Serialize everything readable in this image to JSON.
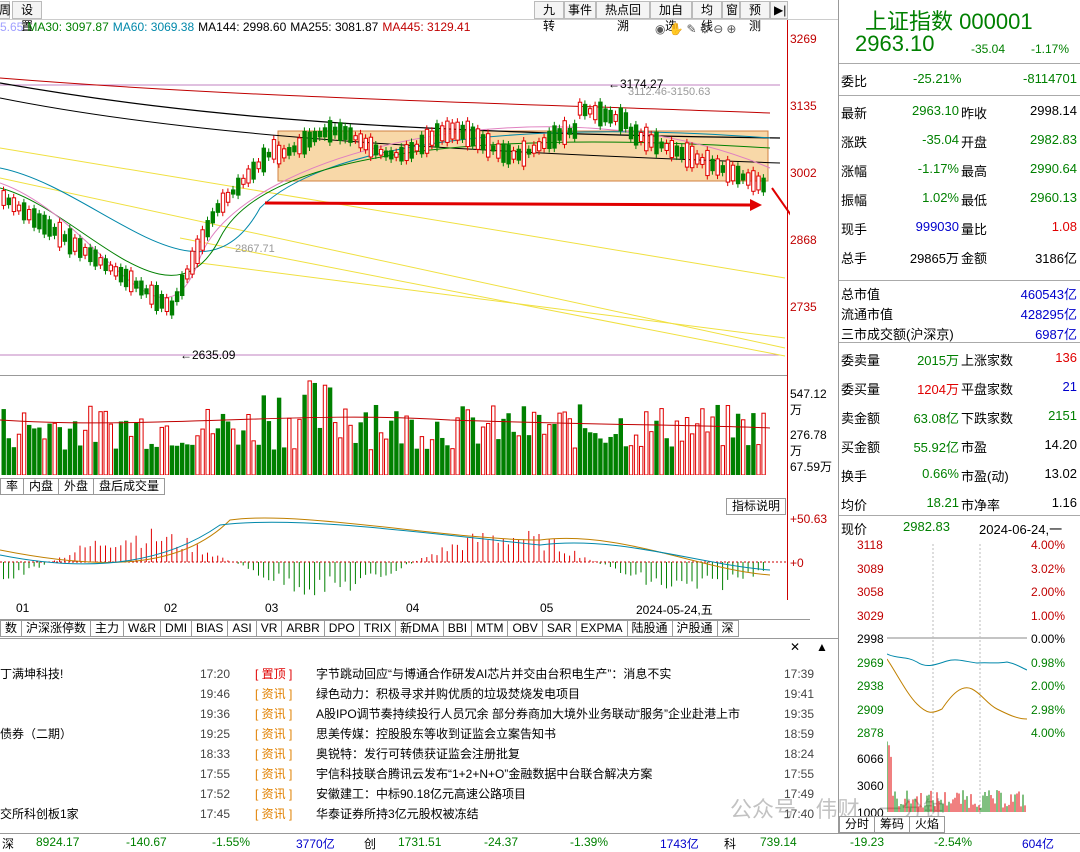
{
  "toolbar": {
    "left_partial": "周",
    "settings": "设置",
    "buttons": [
      "九转",
      "事件",
      "热点回溯",
      "加自选",
      "均线",
      "窗",
      "预测"
    ]
  },
  "ma": [
    {
      "label": "5.65",
      "color": "#a0a0ff"
    },
    {
      "label": "MA30: 3097.87",
      "color": "#008000"
    },
    {
      "label": "MA60: 3069.38",
      "color": "#0088aa"
    },
    {
      "label": "MA144: 2998.60",
      "color": "#000000"
    },
    {
      "label": "MA255: 3081.87",
      "color": "#000000"
    },
    {
      "label": "MA445: 3129.41",
      "color": "#c00000"
    }
  ],
  "price_axis": [
    "3269",
    "3135",
    "3002",
    "2868",
    "2735"
  ],
  "annotations": {
    "high": "3174.27",
    "low": "2635.09",
    "mid": "2867.71",
    "range": "3112.46-3150.63"
  },
  "volume_axis": [
    "547.12万",
    "276.78万",
    "67.59万"
  ],
  "vol_tabs": [
    "率",
    "内盘",
    "外盘",
    "盘后成交量"
  ],
  "indicator_explain": "指标说明",
  "macd_axis": [
    "+50.63",
    "+0"
  ],
  "time_axis": [
    "01",
    "02",
    "03",
    "04",
    "05",
    "2024-05-24,五"
  ],
  "indicator_tabs": [
    "数",
    "沪深涨停数",
    "主力",
    "W&R",
    "DMI",
    "BIAS",
    "ASI",
    "VR",
    "ARBR",
    "DPO",
    "TRIX",
    "新DMA",
    "BBI",
    "MTM",
    "OBV",
    "SAR",
    "EXPMA",
    "陆股通",
    "沪股通",
    "深"
  ],
  "news": [
    {
      "left": "丁满坤科技!",
      "time1": "17:20",
      "tag": "置顶",
      "title": "字节跳动回应“与博通合作研发AI芯片并交由台积电生产”：消息不实",
      "time2": "17:39",
      "top": true
    },
    {
      "left": "",
      "time1": "19:46",
      "tag": "资讯",
      "title": "绿色动力：积极寻求并购优质的垃圾焚烧发电项目",
      "time2": "19:41",
      "top": false
    },
    {
      "left": "",
      "time1": "19:36",
      "tag": "资讯",
      "title": "A股IPO调节奏持续投行人员冗余 部分券商加大境外业务联动“服务”企业赴港上市",
      "time2": "19:35",
      "top": false
    },
    {
      "left": "债券（二期）",
      "time1": "19:25",
      "tag": "资讯",
      "title": "思美传媒：控股股东等收到证监会立案告知书",
      "time2": "18:59",
      "top": false
    },
    {
      "left": "",
      "time1": "18:33",
      "tag": "资讯",
      "title": "奥锐特：发行可转债获证监会注册批复",
      "time2": "18:24",
      "top": false
    },
    {
      "left": "",
      "time1": "17:55",
      "tag": "资讯",
      "title": "宇信科技联合腾讯云发布“1+2+N+O”金融数据中台联合解决方案",
      "time2": "17:55",
      "top": false
    },
    {
      "left": "",
      "time1": "17:52",
      "tag": "资讯",
      "title": "安徽建工：中标90.18亿元高速公路项目",
      "time2": "17:49",
      "top": false
    },
    {
      "left": "交所科创板1家",
      "time1": "17:45",
      "tag": "资讯",
      "title": "华泰证券所持3亿元股权被冻结",
      "time2": "17:40",
      "top": false
    }
  ],
  "bottom": {
    "sz_label": "深",
    "sz_value": "8924.17",
    "sz_change": "-140.67",
    "sz_pct": "-1.55%",
    "sz_amount": "3770亿",
    "cy_label": "创",
    "cy_value": "1731.51",
    "cy_change": "-24.37",
    "cy_pct": "-1.39%",
    "cy_amount": "1743亿",
    "kc_label": "科",
    "kc_value": "739.14",
    "kc_change": "-19.23",
    "kc_pct": "-2.54%",
    "kc_amount": "604亿"
  },
  "quote": {
    "name": "上证指数",
    "code": "000001",
    "price": "2963.10",
    "change": "-35.04",
    "pct": "-1.17%",
    "weibi_label": "委比",
    "weibi": "-25.21%",
    "weicha": "-8114701",
    "rows": [
      {
        "l1": "最新",
        "v1": "2963.10",
        "l2": "昨收",
        "v2": "2998.14",
        "c1": "green",
        "c2": "black"
      },
      {
        "l1": "涨跌",
        "v1": "-35.04",
        "l2": "开盘",
        "v2": "2982.83",
        "c1": "green",
        "c2": "green"
      },
      {
        "l1": "涨幅",
        "v1": "-1.17%",
        "l2": "最高",
        "v2": "2990.64",
        "c1": "green",
        "c2": "green"
      },
      {
        "l1": "振幅",
        "v1": "1.02%",
        "l2": "最低",
        "v2": "2960.13",
        "c1": "green",
        "c2": "green"
      },
      {
        "l1": "现手",
        "v1": "999030",
        "l2": "量比",
        "v2": "1.08",
        "c1": "blue",
        "c2": "red"
      },
      {
        "l1": "总手",
        "v1": "29865万",
        "l2": "金额",
        "v2": "3186亿",
        "c1": "black",
        "c2": "black"
      }
    ],
    "mcap_label": "总市值",
    "mcap": "460543亿",
    "float_label": "流通市值",
    "float": "428295亿",
    "turnover3_label": "三市成交额(沪深京)",
    "turnover3": "6987亿",
    "rows2": [
      {
        "l1": "委卖量",
        "v1": "2015万",
        "l2": "上涨家数",
        "v2": "136",
        "c1": "green",
        "c2": "red"
      },
      {
        "l1": "委买量",
        "v1": "1204万",
        "l2": "平盘家数",
        "v2": "21",
        "c1": "red",
        "c2": "blue"
      },
      {
        "l1": "卖金额",
        "v1": "63.08亿",
        "l2": "下跌家数",
        "v2": "2151",
        "c1": "green",
        "c2": "green"
      },
      {
        "l1": "买金额",
        "v1": "55.92亿",
        "l2": "市盈",
        "v2": "14.20",
        "c1": "green",
        "c2": "black"
      },
      {
        "l1": "换手",
        "v1": "0.66%",
        "l2": "市盈(动)",
        "v2": "13.02",
        "c1": "green",
        "c2": "black"
      },
      {
        "l1": "均价",
        "v1": "18.21",
        "l2": "市净率",
        "v2": "1.16",
        "c1": "green",
        "c2": "black"
      }
    ],
    "now_label": "现价",
    "now_value": "2982.83",
    "now_date": "2024-06-24,一"
  },
  "mini": {
    "left_axis": [
      "3118",
      "3089",
      "3058",
      "3029",
      "2998",
      "2969",
      "2938",
      "2909",
      "2878"
    ],
    "right_axis": [
      "4.00%",
      "3.02%",
      "2.00%",
      "1.00%",
      "0.00%",
      "0.98%",
      "2.00%",
      "2.98%",
      "4.00%"
    ],
    "vol_axis": [
      "6066",
      "3060",
      "1000"
    ],
    "tabs": [
      "分时",
      "筹码",
      "火焰"
    ]
  },
  "watermark": "公众号 · 伟财 · 一分钟",
  "colors": {
    "up": "#e00000",
    "down": "#008000",
    "box": "#f8d8a8"
  }
}
